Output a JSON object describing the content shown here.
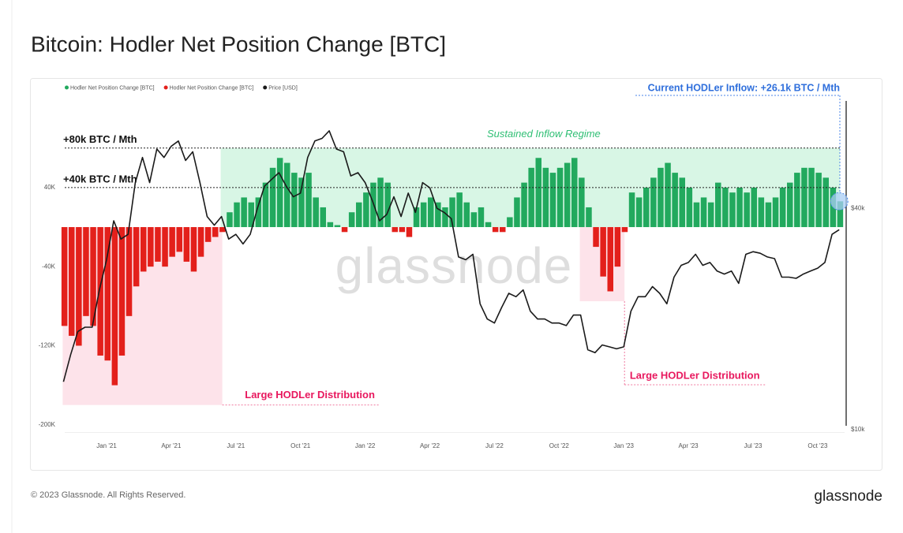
{
  "chart_data": {
    "type": "bar",
    "title": "Bitcoin: Hodler Net Position Change [BTC]",
    "watermark": "glassnode",
    "legend": "top-left",
    "grid": false,
    "categories": [
      null,
      null,
      null,
      null,
      null,
      null,
      "Jan '21",
      null,
      null,
      null,
      null,
      null,
      null,
      null,
      null,
      "Apr '21",
      null,
      null,
      null,
      null,
      null,
      null,
      null,
      null,
      "Jul '21",
      null,
      null,
      null,
      null,
      null,
      null,
      null,
      null,
      "Oct '21",
      null,
      null,
      null,
      null,
      null,
      null,
      null,
      null,
      "Jan '22",
      null,
      null,
      null,
      null,
      null,
      null,
      null,
      null,
      "Apr '22",
      null,
      null,
      null,
      null,
      null,
      null,
      null,
      null,
      "Jul '22",
      null,
      null,
      null,
      null,
      null,
      null,
      null,
      null,
      "Oct '22",
      null,
      null,
      null,
      null,
      null,
      null,
      null,
      null,
      "Jan '23",
      null,
      null,
      null,
      null,
      null,
      null,
      null,
      null,
      "Apr '23",
      null,
      null,
      null,
      null,
      null,
      null,
      null,
      null,
      "Jul '23",
      null,
      null,
      null,
      null,
      null,
      null,
      null,
      null,
      "Oct '23",
      null,
      null,
      null
    ],
    "series": [
      {
        "name": "Hodler Net Position Change [BTC]",
        "color": "#22a95e",
        "values": [
          null,
          null,
          null,
          null,
          null,
          null,
          null,
          null,
          null,
          null,
          null,
          null,
          null,
          null,
          null,
          null,
          null,
          null,
          null,
          null,
          null,
          null,
          null,
          15000,
          25000,
          30000,
          25000,
          30000,
          45000,
          60000,
          70000,
          65000,
          55000,
          50000,
          55000,
          30000,
          20000,
          5000,
          2000,
          null,
          15000,
          25000,
          35000,
          45000,
          50000,
          45000,
          null,
          null,
          null,
          20000,
          25000,
          30000,
          25000,
          20000,
          30000,
          35000,
          25000,
          15000,
          20000,
          5000,
          null,
          null,
          10000,
          30000,
          45000,
          60000,
          70000,
          60000,
          55000,
          60000,
          65000,
          70000,
          50000,
          20000,
          null,
          null,
          null,
          null,
          null,
          35000,
          30000,
          40000,
          50000,
          60000,
          65000,
          55000,
          50000,
          40000,
          25000,
          30000,
          25000,
          45000,
          40000,
          35000,
          40000,
          35000,
          40000,
          30000,
          25000,
          30000,
          40000,
          45000,
          55000,
          60000,
          60000,
          55000,
          50000,
          40000,
          26100
        ]
      },
      {
        "name": "Hodler Net Position Change [BTC]",
        "color": "#e3201b",
        "values": [
          -100000,
          -110000,
          -120000,
          -90000,
          -100000,
          -130000,
          -135000,
          -160000,
          -130000,
          -90000,
          -60000,
          -45000,
          -40000,
          -35000,
          -40000,
          -30000,
          -25000,
          -35000,
          -45000,
          -30000,
          -15000,
          -10000,
          -5000,
          null,
          null,
          null,
          null,
          null,
          null,
          null,
          null,
          null,
          null,
          null,
          null,
          null,
          null,
          null,
          null,
          -5000,
          null,
          null,
          null,
          null,
          null,
          null,
          -5000,
          -5000,
          -10000,
          null,
          null,
          null,
          null,
          null,
          null,
          null,
          null,
          null,
          null,
          null,
          -5000,
          -5000,
          null,
          null,
          null,
          null,
          null,
          null,
          null,
          null,
          null,
          null,
          null,
          null,
          -20000,
          -50000,
          -65000,
          -40000,
          -5000,
          null,
          null,
          null,
          null,
          null,
          null,
          null,
          null,
          null,
          null,
          null,
          null,
          null,
          null,
          null,
          null,
          null,
          null,
          null,
          null,
          null,
          null,
          null,
          null,
          null,
          null,
          null,
          null,
          null,
          null
        ]
      },
      {
        "name": "Price [USD]",
        "color": "#1a1a1a",
        "axis": "y2",
        "values": [
          13500,
          16000,
          18500,
          19000,
          19000,
          24000,
          29000,
          37000,
          33000,
          34000,
          47000,
          55000,
          47000,
          58000,
          55000,
          59000,
          61000,
          54000,
          57000,
          47000,
          38000,
          36000,
          38000,
          33000,
          34000,
          32000,
          34000,
          40000,
          46000,
          48000,
          50000,
          46000,
          43000,
          44000,
          55000,
          61000,
          62000,
          65000,
          58000,
          57000,
          49000,
          50000,
          47000,
          42000,
          37000,
          38500,
          43000,
          38000,
          44000,
          39000,
          47000,
          45500,
          40000,
          39000,
          37500,
          29500,
          29000,
          30000,
          22000,
          20000,
          19500,
          21500,
          23500,
          23000,
          24000,
          21000,
          20000,
          20000,
          19500,
          19500,
          19200,
          20500,
          20500,
          16500,
          16200,
          17000,
          16800,
          16600,
          16800,
          21000,
          23000,
          23000,
          24500,
          23500,
          22000,
          26000,
          28000,
          28500,
          30000,
          28000,
          28500,
          27000,
          26500,
          27000,
          25000,
          30000,
          30500,
          30200,
          29500,
          29200,
          26000,
          26000,
          25800,
          26500,
          27000,
          27500,
          28500,
          34000,
          35000
        ]
      }
    ],
    "ylim": [
      -205000,
      150000
    ],
    "yticks": [
      {
        "value": 40000,
        "label": "40K"
      },
      {
        "value": -40000,
        "label": "-40K"
      },
      {
        "value": -120000,
        "label": "-120K"
      },
      {
        "value": -200000,
        "label": "-200K"
      }
    ],
    "y2lim": [
      10000,
      90000
    ],
    "y2log": true,
    "y2ticks": [
      {
        "value": 40000,
        "label": "$40k"
      },
      {
        "value": 10000,
        "label": "$10k"
      }
    ],
    "hlines": [
      {
        "value": 80000,
        "label": "+80k BTC / Mth"
      },
      {
        "value": 40000,
        "label": "+40k BTC / Mth"
      }
    ],
    "regions": [
      {
        "label": "Sustained Inflow Regime",
        "color": "#d8f6e5",
        "from": 22,
        "to": 108,
        "ylim": [
          0,
          80000
        ]
      },
      {
        "label": "Large HODLer Distribution",
        "color": "#fde3ea",
        "from": 0,
        "to": 22,
        "ylim": [
          -180000,
          0
        ]
      },
      {
        "label": "Large HODLer Distribution",
        "color": "#fde3ea",
        "from": 72,
        "to": 78,
        "ylim": [
          -75000,
          0
        ]
      }
    ],
    "current_label": "Current HODLer Inflow: +26.1k BTC / Mth"
  },
  "footer": "© 2023 Glassnode. All Rights Reserved.",
  "brand": "glassnode"
}
